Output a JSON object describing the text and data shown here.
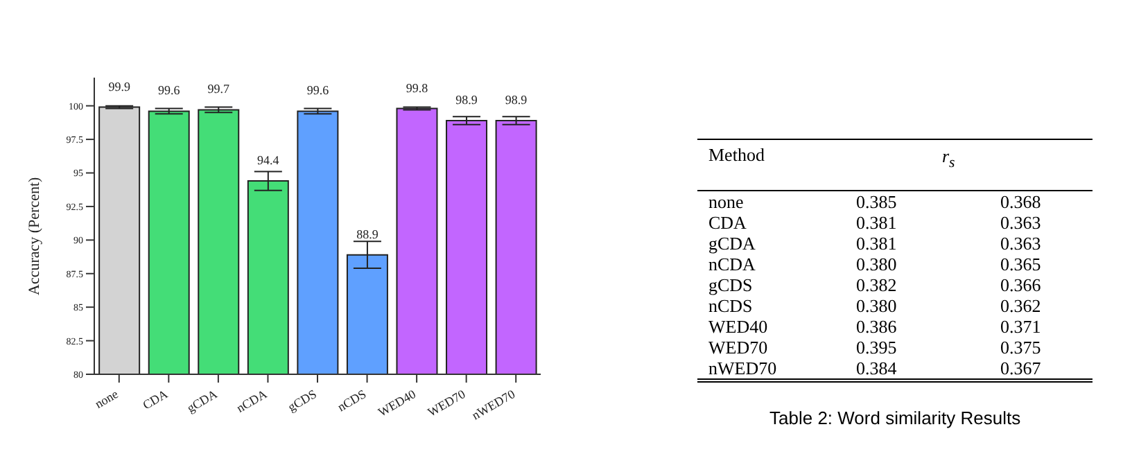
{
  "chart_data": [
    {
      "type": "bar",
      "ylabel": "Accuracy (Percent)",
      "categories": [
        "none",
        "CDA",
        "gCDA",
        "nCDA",
        "gCDS",
        "nCDS",
        "WED40",
        "WED70",
        "nWED70"
      ],
      "values": [
        99.9,
        99.6,
        99.7,
        94.4,
        99.6,
        88.9,
        99.8,
        98.9,
        98.9
      ],
      "colors": [
        "#d3d3d3",
        "#44dd77",
        "#44dd77",
        "#44dd77",
        "#5fa0ff",
        "#5fa0ff",
        "#c266ff",
        "#c266ff",
        "#c266ff"
      ],
      "errors": [
        0.1,
        0.2,
        0.2,
        0.7,
        0.2,
        1.0,
        0.1,
        0.3,
        0.3
      ],
      "data_labels": true,
      "ylim": [
        80,
        102.1
      ],
      "yticks": [
        80,
        82.5,
        85,
        87.5,
        90,
        92.5,
        95,
        97.5,
        100
      ]
    },
    {
      "type": "other",
      "xlabel": "Method",
      "ylabel": "r$_{s}$",
      "title": "Table 2: Word similarity Results",
      "categories": [
        "none",
        "CDA",
        "gCDA",
        "nCDA",
        "gCDS",
        "nCDS",
        "WED40",
        "WED70",
        "nWED70"
      ],
      "series": [
        {
          "values": [
            0.385,
            0.381,
            0.381,
            0.38,
            0.382,
            0.38,
            0.386,
            0.395,
            0.384
          ],
          "value_labels": [
            "0.385",
            "0.381",
            "0.381",
            "0.380",
            "0.382",
            "0.380",
            "0.386",
            "0.395",
            "0.384"
          ]
        },
        {
          "values": [
            0.368,
            0.363,
            0.363,
            0.365,
            0.366,
            0.362,
            0.371,
            0.375,
            0.367
          ],
          "value_labels": [
            "0.368",
            "0.363",
            "0.363",
            "0.365",
            "0.366",
            "0.362",
            "0.371",
            "0.375",
            "0.367"
          ]
        }
      ]
    }
  ]
}
